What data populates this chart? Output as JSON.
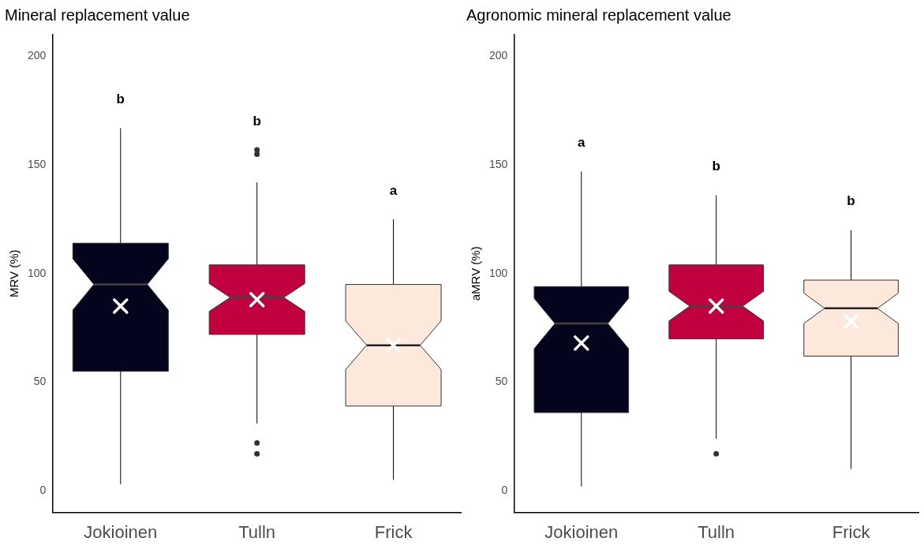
{
  "chart_data": [
    {
      "type": "box",
      "title": "Mineral replacement value",
      "ylabel": "MRV (%)",
      "categories": [
        "Jokioinen",
        "Tulln",
        "Frick"
      ],
      "colors": [
        "#04051c",
        "#c2003f",
        "#fde9dc"
      ],
      "ylim": [
        -10,
        210
      ],
      "yticks": [
        0,
        50,
        100,
        150,
        200
      ],
      "grid": false,
      "legend": false,
      "boxes": [
        {
          "low": 3,
          "q1": 55,
          "median": 95,
          "q3": 114,
          "high": 167,
          "mean": 85
        },
        {
          "low": 31,
          "q1": 72,
          "median": 89,
          "q3": 104,
          "high": 142,
          "mean": 88,
          "outliers": [
            157,
            155,
            22,
            17
          ]
        },
        {
          "low": 5,
          "q1": 39,
          "median": 67,
          "q3": 95,
          "high": 125,
          "mean": 67
        }
      ],
      "annotations": [
        "b",
        "b",
        "a"
      ]
    },
    {
      "type": "box",
      "title": "Agronomic mineral replacement value",
      "ylabel": "aMRV (%)",
      "categories": [
        "Jokioinen",
        "Tulln",
        "Frick"
      ],
      "colors": [
        "#04051c",
        "#c2003f",
        "#fde9dc"
      ],
      "ylim": [
        -10,
        210
      ],
      "yticks": [
        0,
        50,
        100,
        150,
        200
      ],
      "grid": false,
      "legend": false,
      "boxes": [
        {
          "low": 2,
          "q1": 36,
          "median": 77,
          "q3": 94,
          "high": 147,
          "mean": 68
        },
        {
          "low": 24,
          "q1": 70,
          "median": 85,
          "q3": 104,
          "high": 136,
          "mean": 85,
          "outliers": [
            17
          ]
        },
        {
          "low": 10,
          "q1": 62,
          "median": 84,
          "q3": 97,
          "high": 120,
          "mean": 78
        }
      ],
      "annotations": [
        "a",
        "b",
        "b"
      ]
    }
  ]
}
